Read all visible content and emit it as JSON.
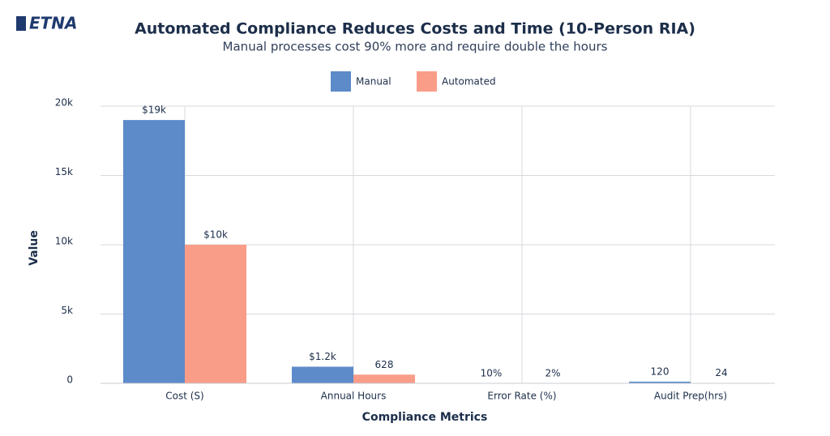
{
  "logo": "ETNA",
  "chart_data": {
    "type": "bar",
    "title": "Automated Compliance Reduces Costs and Time (10-Person RIA)",
    "subtitle": "Manual processes cost 90% more and require double the hours",
    "x_label": "Compliance Metrics",
    "y_label": "Value",
    "categories": [
      "Cost (S)",
      "Annual Hours",
      "Error Rate (%)",
      "Audit Prep(hrs)"
    ],
    "series": [
      {
        "name": "Manual",
        "color": "#5d8ac8",
        "values": [
          19000,
          1200,
          10,
          120
        ],
        "value_labels": [
          "$19k",
          "$1.2k",
          "10%",
          "120"
        ]
      },
      {
        "name": "Automated",
        "color": "#f99d89",
        "values": [
          10000,
          628,
          2,
          24
        ],
        "value_labels": [
          "$10k",
          "628",
          "2%",
          "24"
        ]
      }
    ],
    "ylim": [
      0,
      20000
    ],
    "yticks": [
      0,
      {
        "value": 5000,
        "label": "5k"
      },
      {
        "value": 10000,
        "label": "10k"
      },
      {
        "value": 15000,
        "label": "15k"
      },
      {
        "value": 20000,
        "label": "20k"
      }
    ],
    "grid": true,
    "legend": "top"
  }
}
